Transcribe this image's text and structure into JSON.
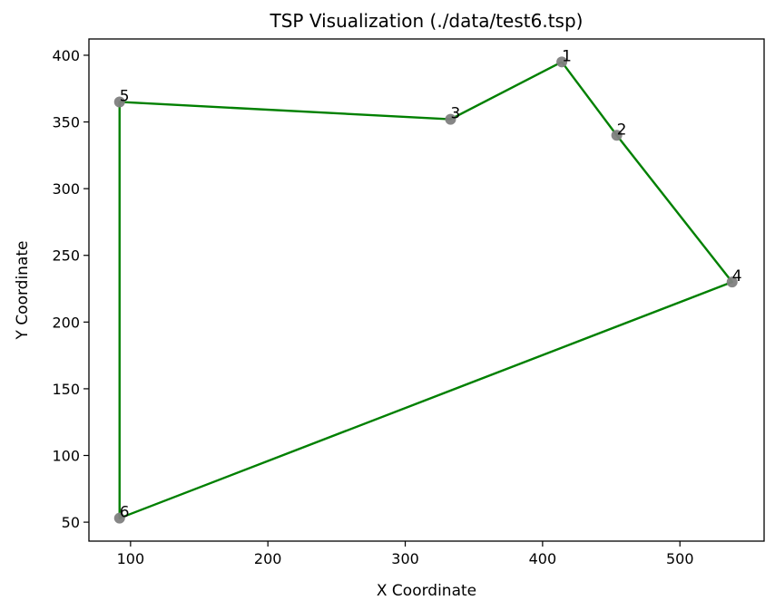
{
  "chart_data": {
    "type": "scatter",
    "title": "TSP Visualization (./data/test6.tsp)",
    "xlabel": "X Coordinate",
    "ylabel": "Y Coordinate",
    "xlim": [
      69.7,
      561.3
    ],
    "ylim": [
      35.8,
      412.2
    ],
    "xticks": [
      100,
      200,
      300,
      400,
      500
    ],
    "yticks": [
      50,
      100,
      150,
      200,
      250,
      300,
      350,
      400
    ],
    "grid": false,
    "points": [
      {
        "label": "1",
        "x": 414,
        "y": 395
      },
      {
        "label": "2",
        "x": 454,
        "y": 340
      },
      {
        "label": "3",
        "x": 333,
        "y": 352
      },
      {
        "label": "4",
        "x": 538,
        "y": 230
      },
      {
        "label": "5",
        "x": 92,
        "y": 365
      },
      {
        "label": "6",
        "x": 92,
        "y": 53
      }
    ],
    "tour": [
      "1",
      "2",
      "4",
      "6",
      "5",
      "3",
      "1"
    ],
    "colors": {
      "route": "#008000",
      "point": "#808080"
    }
  }
}
